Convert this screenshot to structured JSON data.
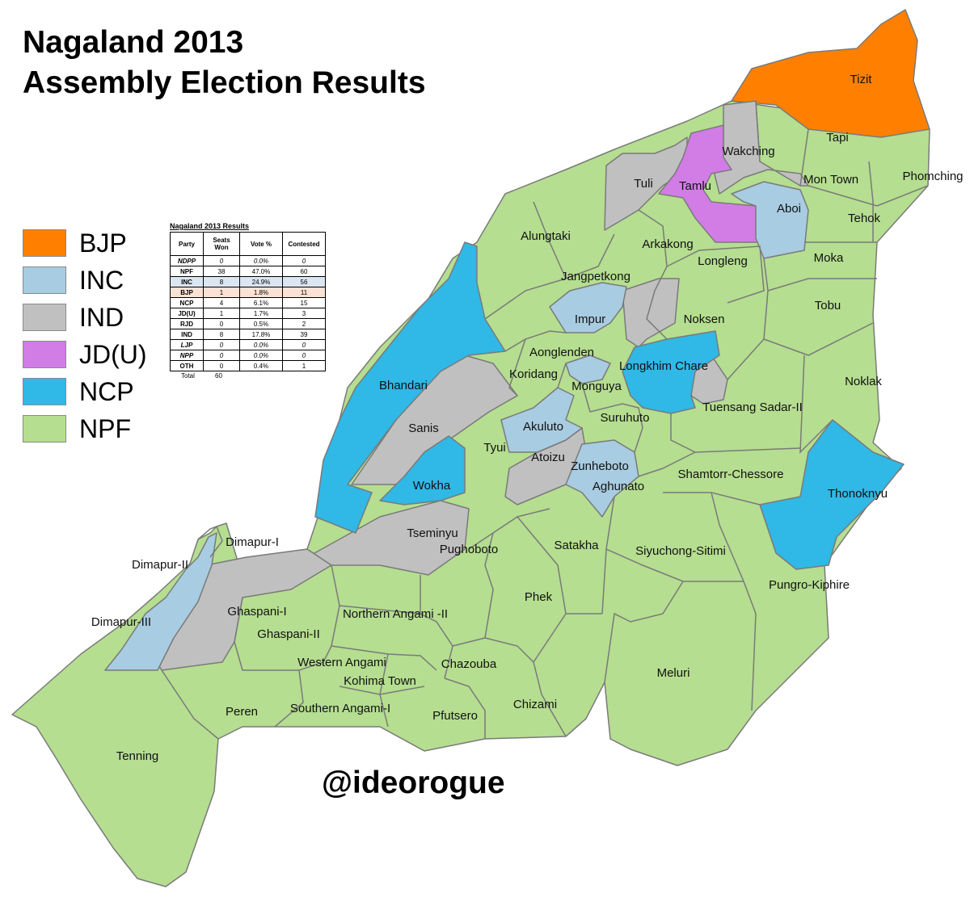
{
  "title": {
    "line1": "Nagaland 2013",
    "line2": "Assembly Election Results"
  },
  "legend": [
    {
      "party": "BJP",
      "color": "#ff8000"
    },
    {
      "party": "INC",
      "color": "#a8cce1"
    },
    {
      "party": "IND",
      "color": "#c0c0c0"
    },
    {
      "party": "JD(U)",
      "color": "#d27ce6"
    },
    {
      "party": "NCP",
      "color": "#30b8e6"
    },
    {
      "party": "NPF",
      "color": "#b5de90"
    }
  ],
  "results_table": {
    "title": "Nagaland 2013 Results",
    "headers": [
      "Party",
      "Seats Won",
      "Vote %",
      "Contested"
    ],
    "rows": [
      [
        "NDPP",
        "0",
        "0.0%",
        "0"
      ],
      [
        "NPF",
        "38",
        "47.0%",
        "60"
      ],
      [
        "INC",
        "8",
        "24.9%",
        "56"
      ],
      [
        "BJP",
        "1",
        "1.8%",
        "11"
      ],
      [
        "NCP",
        "4",
        "6.1%",
        "15"
      ],
      [
        "JD(U)",
        "1",
        "1.7%",
        "3"
      ],
      [
        "RJD",
        "0",
        "0.5%",
        "2"
      ],
      [
        "IND",
        "8",
        "17.8%",
        "39"
      ],
      [
        "LJP",
        "0",
        "0.0%",
        "0"
      ],
      [
        "NPP",
        "0",
        "0.0%",
        "0"
      ],
      [
        "OTH",
        "0",
        "0.4%",
        "1"
      ]
    ],
    "total_label": "Total",
    "total_value": "60"
  },
  "constituencies": [
    {
      "name": "Tizit",
      "party": "BJP"
    },
    {
      "name": "Tapi",
      "party": "NPF"
    },
    {
      "name": "Phomching",
      "party": "NPF"
    },
    {
      "name": "Wakching",
      "party": "IND"
    },
    {
      "name": "Mon Town",
      "party": "NPF"
    },
    {
      "name": "Tehok",
      "party": "NPF"
    },
    {
      "name": "Tuli",
      "party": "IND"
    },
    {
      "name": "Tamlu",
      "party": "JD(U)"
    },
    {
      "name": "Aboi",
      "party": "INC"
    },
    {
      "name": "Alungtaki",
      "party": "NPF"
    },
    {
      "name": "Arkakong",
      "party": "NPF"
    },
    {
      "name": "Longleng",
      "party": "NPF"
    },
    {
      "name": "Moka",
      "party": "NPF"
    },
    {
      "name": "Jangpetkong",
      "party": "NPF"
    },
    {
      "name": "Impur",
      "party": "INC"
    },
    {
      "name": "Tobu",
      "party": "NPF"
    },
    {
      "name": "Noksen",
      "party": "NPF"
    },
    {
      "name": "Aonglenden",
      "party": "NPF"
    },
    {
      "name": "Longkhim Chare",
      "party": "NCP"
    },
    {
      "name": "Bhandari",
      "party": "NCP"
    },
    {
      "name": "Koridang",
      "party": "NPF"
    },
    {
      "name": "Monguya",
      "party": "INC"
    },
    {
      "name": "Noklak",
      "party": "NPF"
    },
    {
      "name": "Tuensang Sadar-II",
      "party": "IND"
    },
    {
      "name": "Suruhuto",
      "party": "NPF"
    },
    {
      "name": "Sanis",
      "party": "IND"
    },
    {
      "name": "Akuluto",
      "party": "INC"
    },
    {
      "name": "Tyui",
      "party": "NPF"
    },
    {
      "name": "Atoizu",
      "party": "IND"
    },
    {
      "name": "Zunheboto",
      "party": "INC"
    },
    {
      "name": "Shamtorr-Chessore",
      "party": "NPF"
    },
    {
      "name": "Wokha",
      "party": "NCP"
    },
    {
      "name": "Aghunato",
      "party": "INC"
    },
    {
      "name": "Thonoknyu",
      "party": "NCP"
    },
    {
      "name": "Dimapur-I",
      "party": "NPF"
    },
    {
      "name": "Tseminyu",
      "party": "IND"
    },
    {
      "name": "Satakha",
      "party": "NPF"
    },
    {
      "name": "Pughoboto",
      "party": "NPF"
    },
    {
      "name": "Siyuchong-Sitimi",
      "party": "NPF"
    },
    {
      "name": "Dimapur-II",
      "party": "INC"
    },
    {
      "name": "Pungro-Kiphire",
      "party": "NPF"
    },
    {
      "name": "Phek",
      "party": "NPF"
    },
    {
      "name": "Ghaspani-I",
      "party": "IND"
    },
    {
      "name": "Northern Angami -II",
      "party": "NPF"
    },
    {
      "name": "Dimapur-III",
      "party": "INC"
    },
    {
      "name": "Ghaspani-II",
      "party": "NPF"
    },
    {
      "name": "Western Angami",
      "party": "NPF"
    },
    {
      "name": "Chazouba",
      "party": "NPF"
    },
    {
      "name": "Kohima Town",
      "party": "NPF"
    },
    {
      "name": "Meluri",
      "party": "NPF"
    },
    {
      "name": "Chizami",
      "party": "NPF"
    },
    {
      "name": "Peren",
      "party": "NPF"
    },
    {
      "name": "Southern Angami-I",
      "party": "NPF"
    },
    {
      "name": "Pfutsero",
      "party": "NPF"
    },
    {
      "name": "Tenning",
      "party": "NPF"
    }
  ],
  "credit": "@ideorogue"
}
